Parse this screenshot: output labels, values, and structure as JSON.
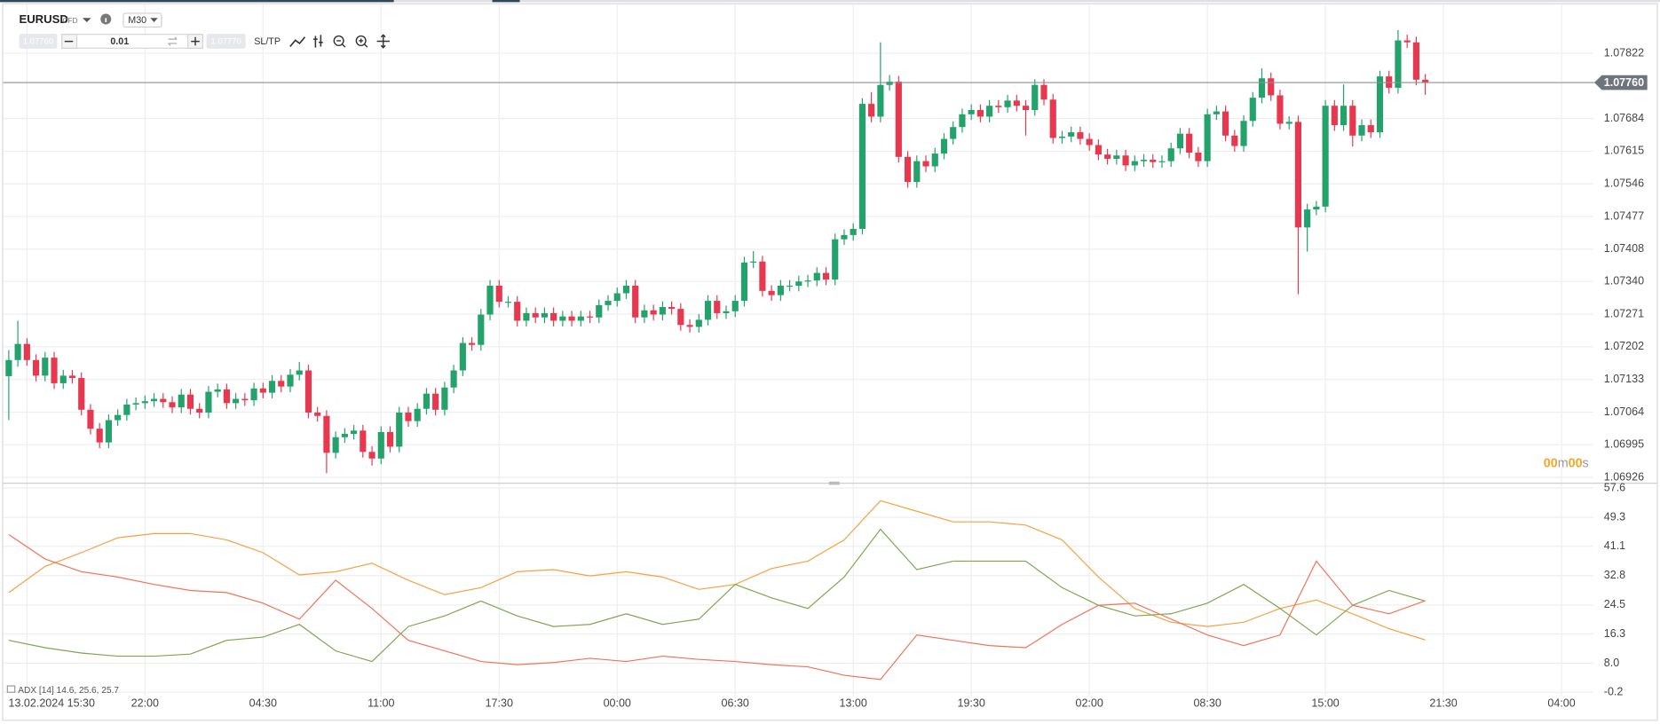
{
  "toolbar": {
    "symbol": "EURUSD",
    "instrument_type": "CFD",
    "timeframe": "M30",
    "sell_price": "1.07760",
    "lot": "0.01",
    "buy_price": "1.07770",
    "sl_tp": "SL/TP"
  },
  "countdown": [
    "00",
    "m",
    "00",
    "s"
  ],
  "chart_data": [
    {
      "type": "candlestick",
      "up_color": "#23a36b",
      "down_color": "#e8384f",
      "grid": true,
      "xlim": [
        -0.5,
        174.5
      ],
      "ylim": [
        1.06915,
        1.07912
      ],
      "yticks": [
        1.07822,
        1.07684,
        1.07615,
        1.07546,
        1.07477,
        1.07408,
        {
          "value": 1.0734,
          "label": "1.07340"
        },
        1.07271,
        1.07202,
        1.07133,
        1.07064,
        1.06995,
        1.06926
      ],
      "current_price": {
        "value": 1.0776,
        "label": "1.07760"
      },
      "open": [
        1.0714,
        1.07174,
        1.07208,
        1.07174,
        1.07141,
        1.07179,
        1.07125,
        1.07141,
        1.07136,
        1.07069,
        1.07029,
        1.07,
        1.07047,
        1.07058,
        1.0708,
        1.07083,
        1.07087,
        1.07092,
        1.07085,
        1.07074,
        1.07101,
        1.07071,
        1.07063,
        1.07107,
        1.07112,
        1.07083,
        1.07092,
        1.07089,
        1.07114,
        1.07105,
        1.0713,
        1.07118,
        1.07143,
        1.07152,
        1.07063,
        1.07056,
        1.06978,
        1.07011,
        1.07018,
        1.07025,
        1.0698,
        1.06966,
        1.07022,
        1.06991,
        1.07063,
        1.07045,
        1.07071,
        1.07103,
        1.07069,
        1.07116,
        1.07152,
        1.0721,
        1.07206,
        1.0727,
        1.07331,
        1.07297,
        1.07297,
        1.07257,
        1.07273,
        1.07264,
        1.07273,
        1.07257,
        1.07266,
        1.07257,
        1.07266,
        1.07264,
        1.0729,
        1.07299,
        1.07315,
        1.07331,
        1.07264,
        1.07279,
        1.0727,
        1.07286,
        1.07282,
        1.07248,
        1.07244,
        1.07259,
        1.07299,
        1.07273,
        1.07277,
        1.07299,
        1.0738,
        1.07382,
        1.0732,
        1.07311,
        1.07331,
        1.07331,
        1.0734,
        1.07342,
        1.07358,
        1.07344,
        1.07429,
        1.07438,
        1.07451,
        1.07715,
        1.07688,
        1.07755,
        1.07762,
        1.07603,
        1.0755,
        1.07594,
        1.07583,
        1.0761,
        1.07641,
        1.07666,
        1.07693,
        1.07702,
        1.07688,
        1.07711,
        1.07708,
        1.07722,
        1.07711,
        1.07702,
        1.07755,
        1.07724,
        1.07643,
        1.07646,
        1.07655,
        1.07641,
        1.07628,
        1.07608,
        1.07599,
        1.07606,
        1.07585,
        1.07594,
        1.07597,
        1.07592,
        1.07594,
        1.07621,
        1.07652,
        1.07612,
        1.07594,
        1.07693,
        1.07699,
        1.07648,
        1.07626,
        1.07679,
        1.07728,
        1.07769,
        1.07733,
        1.07673,
        1.07677,
        1.07454,
        1.07492,
        1.07498,
        1.07711,
        1.0767,
        1.07711,
        1.07648,
        1.0767,
        1.07655,
        1.07773,
        1.07749,
        1.07849,
        1.07845,
        1.07766
      ],
      "high": [
        1.07195,
        1.07257,
        1.0722,
        1.07186,
        1.07191,
        1.07191,
        1.07153,
        1.07153,
        1.07148,
        1.07081,
        1.07041,
        1.07059,
        1.0707,
        1.07092,
        1.07095,
        1.07099,
        1.07104,
        1.07104,
        1.07097,
        1.07113,
        1.07113,
        1.07083,
        1.07119,
        1.07124,
        1.07124,
        1.07104,
        1.07104,
        1.07126,
        1.07126,
        1.07142,
        1.07142,
        1.07155,
        1.0717,
        1.07164,
        1.07075,
        1.07068,
        1.07023,
        1.0703,
        1.07037,
        1.07037,
        1.06992,
        1.07034,
        1.07034,
        1.07075,
        1.07075,
        1.07083,
        1.07115,
        1.07115,
        1.07128,
        1.07164,
        1.07222,
        1.07222,
        1.07282,
        1.07343,
        1.07343,
        1.07309,
        1.07309,
        1.07285,
        1.07285,
        1.07285,
        1.07285,
        1.07278,
        1.07278,
        1.07278,
        1.07278,
        1.07302,
        1.07311,
        1.07327,
        1.07343,
        1.07343,
        1.07291,
        1.07291,
        1.07298,
        1.07298,
        1.07294,
        1.0726,
        1.07271,
        1.07311,
        1.07311,
        1.07289,
        1.07311,
        1.07392,
        1.07404,
        1.07394,
        1.07332,
        1.07343,
        1.07343,
        1.07352,
        1.07354,
        1.0737,
        1.0737,
        1.07441,
        1.0745,
        1.07463,
        1.07727,
        1.0774,
        1.07845,
        1.07776,
        1.07774,
        1.07615,
        1.07606,
        1.07606,
        1.07622,
        1.07653,
        1.07678,
        1.07705,
        1.07714,
        1.07714,
        1.07723,
        1.07723,
        1.07734,
        1.07734,
        1.07723,
        1.07767,
        1.07767,
        1.07736,
        1.07658,
        1.07667,
        1.07667,
        1.07653,
        1.0764,
        1.0762,
        1.07618,
        1.07618,
        1.07606,
        1.07609,
        1.07609,
        1.07606,
        1.07633,
        1.07664,
        1.07664,
        1.07624,
        1.07705,
        1.07711,
        1.07711,
        1.0766,
        1.07691,
        1.0774,
        1.0779,
        1.07781,
        1.07745,
        1.07689,
        1.0769,
        1.07504,
        1.0751,
        1.07723,
        1.07723,
        1.07756,
        1.07723,
        1.07682,
        1.07682,
        1.07785,
        1.07785,
        1.07871,
        1.07861,
        1.07857,
        1.07778
      ],
      "low": [
        1.07047,
        1.0716,
        1.07162,
        1.07129,
        1.07129,
        1.07113,
        1.07113,
        1.07124,
        1.07057,
        1.07017,
        1.06988,
        1.06988,
        1.07035,
        1.07046,
        1.07068,
        1.07071,
        1.07075,
        1.07073,
        1.07062,
        1.07062,
        1.07059,
        1.07051,
        1.07051,
        1.07095,
        1.07071,
        1.07071,
        1.07077,
        1.07077,
        1.07093,
        1.07093,
        1.07106,
        1.07106,
        1.07131,
        1.07051,
        1.07044,
        1.06935,
        1.06966,
        1.06999,
        1.07006,
        1.06968,
        1.06951,
        1.06954,
        1.06979,
        1.06979,
        1.07033,
        1.07033,
        1.07059,
        1.07057,
        1.07057,
        1.07104,
        1.0714,
        1.07194,
        1.07194,
        1.07258,
        1.07285,
        1.07285,
        1.07245,
        1.07245,
        1.07252,
        1.07252,
        1.07245,
        1.07245,
        1.07245,
        1.07245,
        1.07252,
        1.07252,
        1.07278,
        1.07287,
        1.07303,
        1.07252,
        1.07252,
        1.07258,
        1.07258,
        1.0727,
        1.07236,
        1.07232,
        1.07232,
        1.07247,
        1.07261,
        1.07261,
        1.07265,
        1.07287,
        1.07368,
        1.07308,
        1.07299,
        1.07299,
        1.07319,
        1.07319,
        1.07328,
        1.0733,
        1.07332,
        1.07332,
        1.07417,
        1.07426,
        1.07439,
        1.07676,
        1.07676,
        1.07743,
        1.07591,
        1.07538,
        1.07538,
        1.07571,
        1.07571,
        1.07598,
        1.07629,
        1.07654,
        1.07681,
        1.07676,
        1.07676,
        1.07696,
        1.07696,
        1.07699,
        1.07648,
        1.0769,
        1.07712,
        1.07631,
        1.07631,
        1.07634,
        1.07629,
        1.07616,
        1.07596,
        1.07587,
        1.07587,
        1.07573,
        1.07573,
        1.07582,
        1.0758,
        1.0758,
        1.07582,
        1.07609,
        1.076,
        1.07582,
        1.07582,
        1.07681,
        1.07636,
        1.07614,
        1.07614,
        1.07667,
        1.07716,
        1.07721,
        1.07661,
        1.07661,
        1.07313,
        1.07403,
        1.0748,
        1.07486,
        1.07658,
        1.07658,
        1.07625,
        1.07636,
        1.07643,
        1.07643,
        1.07737,
        1.07737,
        1.07833,
        1.07754,
        1.07734
      ],
      "close": [
        1.07174,
        1.07208,
        1.07174,
        1.07141,
        1.07179,
        1.07125,
        1.07141,
        1.07136,
        1.07069,
        1.07029,
        1.07,
        1.07047,
        1.07058,
        1.0708,
        1.07083,
        1.07087,
        1.07092,
        1.07085,
        1.07074,
        1.07101,
        1.07071,
        1.07063,
        1.07107,
        1.07112,
        1.07083,
        1.07092,
        1.07089,
        1.07114,
        1.07105,
        1.0713,
        1.07118,
        1.07143,
        1.07152,
        1.07063,
        1.07056,
        1.06978,
        1.07011,
        1.07018,
        1.07025,
        1.0698,
        1.06966,
        1.07022,
        1.06991,
        1.07063,
        1.07045,
        1.07071,
        1.07103,
        1.07069,
        1.07116,
        1.07152,
        1.0721,
        1.07206,
        1.0727,
        1.07331,
        1.07297,
        1.07297,
        1.07257,
        1.07273,
        1.07264,
        1.07273,
        1.07257,
        1.07266,
        1.07257,
        1.07266,
        1.07264,
        1.0729,
        1.07299,
        1.07315,
        1.07331,
        1.07264,
        1.07279,
        1.0727,
        1.07286,
        1.07282,
        1.07248,
        1.07244,
        1.07259,
        1.07299,
        1.07273,
        1.07277,
        1.07299,
        1.0738,
        1.07382,
        1.0732,
        1.07311,
        1.07331,
        1.07331,
        1.0734,
        1.07342,
        1.07358,
        1.07344,
        1.07429,
        1.07438,
        1.07451,
        1.07715,
        1.07688,
        1.07755,
        1.07762,
        1.07603,
        1.0755,
        1.07594,
        1.07583,
        1.0761,
        1.07641,
        1.07666,
        1.07693,
        1.07702,
        1.07688,
        1.07711,
        1.07708,
        1.07722,
        1.07711,
        1.07702,
        1.07755,
        1.07724,
        1.07643,
        1.07646,
        1.07655,
        1.07641,
        1.07628,
        1.07608,
        1.07599,
        1.07606,
        1.07585,
        1.07594,
        1.07597,
        1.07592,
        1.07594,
        1.07621,
        1.07652,
        1.07612,
        1.07594,
        1.07693,
        1.07699,
        1.07648,
        1.07626,
        1.07679,
        1.07728,
        1.07769,
        1.07733,
        1.07673,
        1.07677,
        1.07454,
        1.07492,
        1.07498,
        1.07711,
        1.0767,
        1.07711,
        1.07648,
        1.0767,
        1.07655,
        1.07773,
        1.07749,
        1.07849,
        1.07845,
        1.07766,
        1.0776
      ]
    },
    {
      "type": "line",
      "title": "ADX [14]",
      "grid": true,
      "xlim": [
        -0.5,
        174.5
      ],
      "ylim": [
        -0.2,
        57.6
      ],
      "yticks": [
        57.6,
        49.3,
        41.1,
        32.8,
        24.5,
        16.3,
        {
          "value": 8,
          "label": "8.0"
        },
        -0.2
      ],
      "xticks": [
        {
          "value": 2,
          "label": "13.02.2024 15:30"
        },
        {
          "value": 15,
          "label": "22:00"
        },
        {
          "value": 28,
          "label": "04:30"
        },
        {
          "value": 41,
          "label": "11:00"
        },
        {
          "value": 54,
          "label": "17:30"
        },
        {
          "value": 67,
          "label": "00:00"
        },
        {
          "value": 80,
          "label": "06:30"
        },
        {
          "value": 93,
          "label": "13:00"
        },
        {
          "value": 106,
          "label": "19:30"
        },
        {
          "value": 119,
          "label": "02:00"
        },
        {
          "value": 132,
          "label": "08:30"
        },
        {
          "value": 145,
          "label": "15:00"
        },
        {
          "value": 158,
          "label": "21:30"
        },
        {
          "value": 171,
          "label": "04:00"
        }
      ],
      "x": [
        0,
        4,
        8,
        12,
        16,
        20,
        24,
        28,
        32,
        36,
        40,
        44,
        48,
        52,
        56,
        60,
        64,
        68,
        72,
        76,
        80,
        84,
        88,
        92,
        96,
        100,
        104,
        108,
        112,
        116,
        120,
        124,
        128,
        132,
        136,
        140,
        144,
        148,
        152,
        156
      ],
      "series": [
        {
          "color": "#f5a142",
          "values": [
            28.0,
            35.4,
            39.3,
            43.5,
            44.7,
            44.7,
            42.9,
            39.3,
            33.0,
            33.9,
            36.3,
            31.5,
            27.4,
            29.4,
            33.9,
            34.5,
            32.7,
            33.9,
            32.4,
            28.9,
            30.3,
            34.8,
            36.9,
            42.9,
            54.0,
            51.0,
            48.0,
            48.0,
            47.1,
            42.9,
            32.4,
            23.5,
            19.6,
            18.4,
            19.6,
            23.5,
            25.9,
            22.0,
            17.8,
            14.6
          ]
        },
        {
          "color": "#7fa650",
          "values": [
            14.5,
            12.4,
            10.9,
            10.0,
            10.0,
            10.6,
            14.5,
            15.4,
            19.0,
            11.5,
            8.5,
            18.4,
            21.4,
            25.6,
            21.4,
            18.4,
            19.0,
            22.0,
            19.0,
            20.5,
            30.3,
            26.5,
            23.5,
            32.4,
            45.9,
            34.5,
            36.9,
            36.9,
            36.9,
            29.4,
            24.4,
            21.4,
            22.0,
            25.0,
            30.3,
            23.5,
            16.0,
            24.4,
            28.6,
            25.6
          ]
        },
        {
          "color": "#f0735a",
          "values": [
            44.4,
            37.5,
            33.9,
            32.4,
            30.3,
            28.6,
            28.0,
            25.0,
            20.5,
            31.5,
            23.5,
            14.5,
            11.5,
            8.5,
            7.6,
            8.2,
            9.4,
            8.5,
            10.0,
            9.1,
            8.5,
            7.6,
            7.0,
            4.6,
            3.4,
            16.0,
            14.5,
            13.0,
            12.4,
            19.0,
            24.4,
            25.0,
            20.5,
            16.0,
            13.0,
            16.0,
            36.9,
            24.4,
            22.0,
            25.7
          ]
        }
      ]
    }
  ]
}
